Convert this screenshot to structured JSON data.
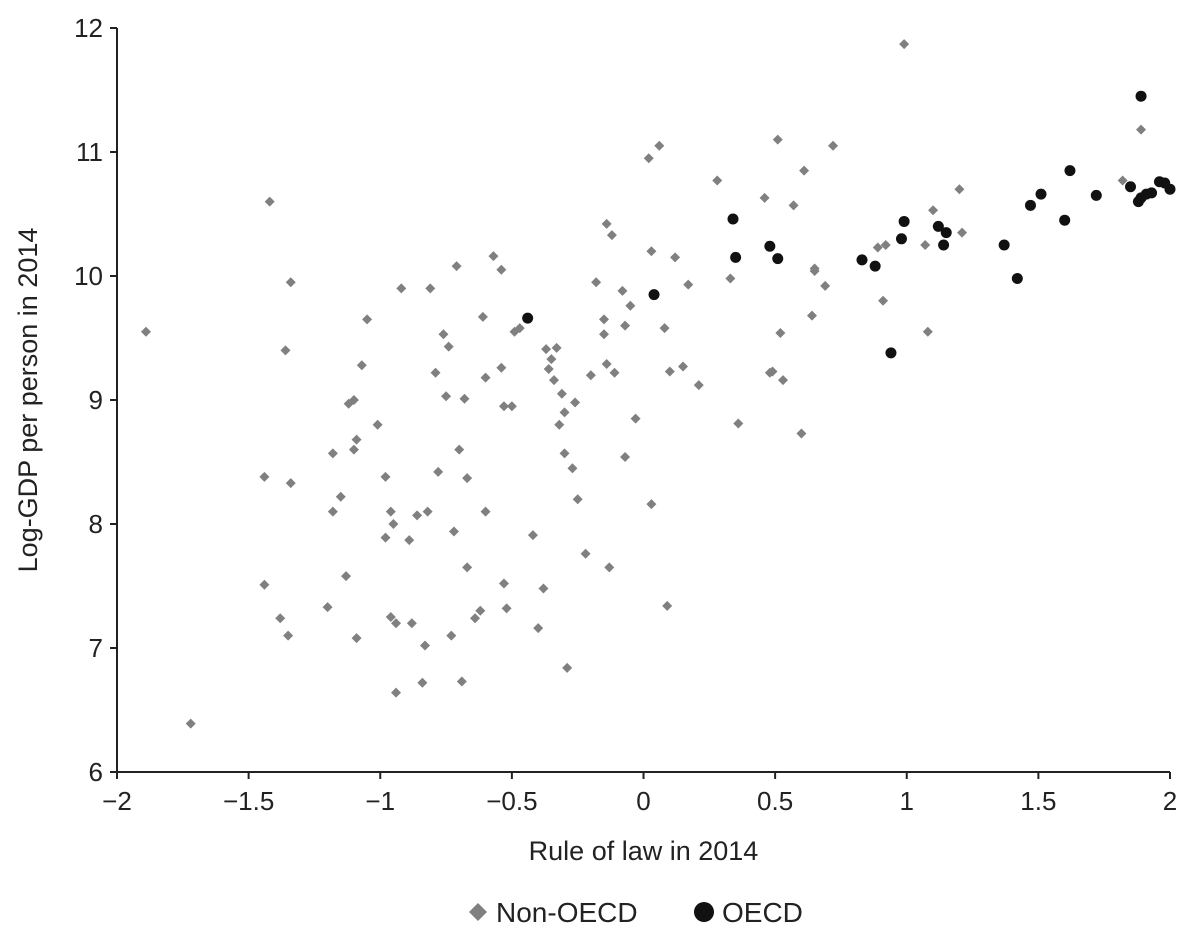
{
  "chart_data": {
    "type": "scatter",
    "title": "",
    "xlabel": "Rule of law in 2014",
    "ylabel": "Log-GDP per person in 2014",
    "xlim": [
      -2,
      2
    ],
    "ylim": [
      6,
      12
    ],
    "xticks": [
      -2,
      -1.5,
      -1,
      -0.5,
      0,
      0.5,
      1,
      1.5,
      2
    ],
    "xtick_labels": [
      "−2",
      "−1.5",
      "−1",
      "−0.5",
      "0",
      "0.5",
      "1",
      "1.5",
      "2"
    ],
    "yticks": [
      6,
      7,
      8,
      9,
      10,
      11,
      12
    ],
    "ytick_labels": [
      "6",
      "7",
      "8",
      "9",
      "10",
      "11",
      "12"
    ],
    "grid": false,
    "legend_position": "bottom-center",
    "series": [
      {
        "name": "Non-OECD",
        "marker": "diamond",
        "color": "#808080",
        "points": [
          [
            -1.89,
            9.55
          ],
          [
            -1.72,
            6.39
          ],
          [
            -1.42,
            10.6
          ],
          [
            -1.36,
            9.4
          ],
          [
            -1.34,
            9.95
          ],
          [
            -1.44,
            8.38
          ],
          [
            -1.34,
            8.33
          ],
          [
            -1.44,
            7.51
          ],
          [
            -1.38,
            7.24
          ],
          [
            -1.35,
            7.1
          ],
          [
            -1.2,
            7.33
          ],
          [
            -1.18,
            8.1
          ],
          [
            -1.18,
            8.57
          ],
          [
            -1.15,
            8.22
          ],
          [
            -1.13,
            7.58
          ],
          [
            -1.12,
            8.97
          ],
          [
            -1.1,
            9.0
          ],
          [
            -1.1,
            8.6
          ],
          [
            -1.09,
            8.68
          ],
          [
            -1.09,
            7.08
          ],
          [
            -1.07,
            9.28
          ],
          [
            -1.05,
            9.65
          ],
          [
            -1.01,
            8.8
          ],
          [
            -0.98,
            8.38
          ],
          [
            -0.98,
            7.89
          ],
          [
            -0.96,
            8.1
          ],
          [
            -0.95,
            8.0
          ],
          [
            -0.96,
            7.25
          ],
          [
            -0.94,
            7.2
          ],
          [
            -0.94,
            6.64
          ],
          [
            -0.92,
            9.9
          ],
          [
            -0.89,
            7.87
          ],
          [
            -0.88,
            7.2
          ],
          [
            -0.86,
            8.07
          ],
          [
            -0.84,
            6.72
          ],
          [
            -0.83,
            7.02
          ],
          [
            -0.82,
            8.1
          ],
          [
            -0.81,
            9.9
          ],
          [
            -0.79,
            9.22
          ],
          [
            -0.78,
            8.42
          ],
          [
            -0.76,
            9.53
          ],
          [
            -0.75,
            9.03
          ],
          [
            -0.74,
            9.43
          ],
          [
            -0.73,
            7.1
          ],
          [
            -0.72,
            7.94
          ],
          [
            -0.71,
            10.08
          ],
          [
            -0.7,
            8.6
          ],
          [
            -0.69,
            6.73
          ],
          [
            -0.68,
            9.01
          ],
          [
            -0.67,
            8.37
          ],
          [
            -0.67,
            7.65
          ],
          [
            -0.64,
            7.24
          ],
          [
            -0.62,
            7.3
          ],
          [
            -0.61,
            9.67
          ],
          [
            -0.6,
            9.18
          ],
          [
            -0.6,
            8.1
          ],
          [
            -0.57,
            10.16
          ],
          [
            -0.54,
            10.05
          ],
          [
            -0.54,
            9.26
          ],
          [
            -0.53,
            8.95
          ],
          [
            -0.53,
            7.52
          ],
          [
            -0.52,
            7.32
          ],
          [
            -0.5,
            8.95
          ],
          [
            -0.49,
            9.55
          ],
          [
            -0.47,
            9.58
          ],
          [
            -0.42,
            7.91
          ],
          [
            -0.4,
            7.16
          ],
          [
            -0.38,
            7.48
          ],
          [
            -0.37,
            9.41
          ],
          [
            -0.36,
            9.25
          ],
          [
            -0.35,
            9.33
          ],
          [
            -0.34,
            9.16
          ],
          [
            -0.33,
            9.42
          ],
          [
            -0.32,
            8.8
          ],
          [
            -0.31,
            9.05
          ],
          [
            -0.3,
            8.9
          ],
          [
            -0.3,
            8.57
          ],
          [
            -0.29,
            6.84
          ],
          [
            -0.27,
            8.45
          ],
          [
            -0.26,
            8.98
          ],
          [
            -0.25,
            8.2
          ],
          [
            -0.22,
            7.76
          ],
          [
            -0.2,
            9.2
          ],
          [
            -0.18,
            9.95
          ],
          [
            -0.15,
            9.65
          ],
          [
            -0.15,
            9.53
          ],
          [
            -0.14,
            9.29
          ],
          [
            -0.14,
            10.42
          ],
          [
            -0.13,
            7.65
          ],
          [
            -0.12,
            10.33
          ],
          [
            -0.11,
            9.22
          ],
          [
            -0.08,
            9.88
          ],
          [
            -0.07,
            9.6
          ],
          [
            -0.07,
            8.54
          ],
          [
            -0.05,
            9.76
          ],
          [
            -0.03,
            8.85
          ],
          [
            0.03,
            10.2
          ],
          [
            0.02,
            10.95
          ],
          [
            0.03,
            8.16
          ],
          [
            0.06,
            11.05
          ],
          [
            0.08,
            9.58
          ],
          [
            0.09,
            7.34
          ],
          [
            0.1,
            9.23
          ],
          [
            0.12,
            10.15
          ],
          [
            0.15,
            9.27
          ],
          [
            0.17,
            9.93
          ],
          [
            0.21,
            9.12
          ],
          [
            0.28,
            10.77
          ],
          [
            0.33,
            9.98
          ],
          [
            0.36,
            8.81
          ],
          [
            0.46,
            10.63
          ],
          [
            0.48,
            9.22
          ],
          [
            0.49,
            9.23
          ],
          [
            0.51,
            11.1
          ],
          [
            0.52,
            9.54
          ],
          [
            0.53,
            9.16
          ],
          [
            0.57,
            10.57
          ],
          [
            0.6,
            8.73
          ],
          [
            0.61,
            10.85
          ],
          [
            0.64,
            9.68
          ],
          [
            0.65,
            10.06
          ],
          [
            0.65,
            10.04
          ],
          [
            0.69,
            9.92
          ],
          [
            0.72,
            11.05
          ],
          [
            0.89,
            10.23
          ],
          [
            0.91,
            9.8
          ],
          [
            0.92,
            10.25
          ],
          [
            0.99,
            11.87
          ],
          [
            1.07,
            10.25
          ],
          [
            1.08,
            9.55
          ],
          [
            1.1,
            10.53
          ],
          [
            1.2,
            10.7
          ],
          [
            1.21,
            10.35
          ],
          [
            1.82,
            10.77
          ],
          [
            1.89,
            11.18
          ]
        ]
      },
      {
        "name": "OECD",
        "marker": "circle",
        "color": "#111111",
        "points": [
          [
            -0.44,
            9.66
          ],
          [
            0.04,
            9.85
          ],
          [
            0.34,
            10.46
          ],
          [
            0.35,
            10.15
          ],
          [
            0.48,
            10.24
          ],
          [
            0.51,
            10.14
          ],
          [
            0.83,
            10.13
          ],
          [
            0.88,
            10.08
          ],
          [
            0.94,
            9.38
          ],
          [
            0.98,
            10.3
          ],
          [
            0.99,
            10.44
          ],
          [
            1.12,
            10.4
          ],
          [
            1.14,
            10.25
          ],
          [
            1.15,
            10.35
          ],
          [
            1.37,
            10.25
          ],
          [
            1.42,
            9.98
          ],
          [
            1.47,
            10.57
          ],
          [
            1.51,
            10.66
          ],
          [
            1.6,
            10.45
          ],
          [
            1.62,
            10.85
          ],
          [
            1.72,
            10.65
          ],
          [
            1.85,
            10.72
          ],
          [
            1.88,
            10.6
          ],
          [
            1.89,
            10.63
          ],
          [
            1.89,
            11.45
          ],
          [
            1.91,
            10.66
          ],
          [
            1.93,
            10.67
          ],
          [
            1.96,
            10.76
          ],
          [
            1.98,
            10.75
          ],
          [
            2.0,
            10.7
          ]
        ]
      }
    ]
  }
}
